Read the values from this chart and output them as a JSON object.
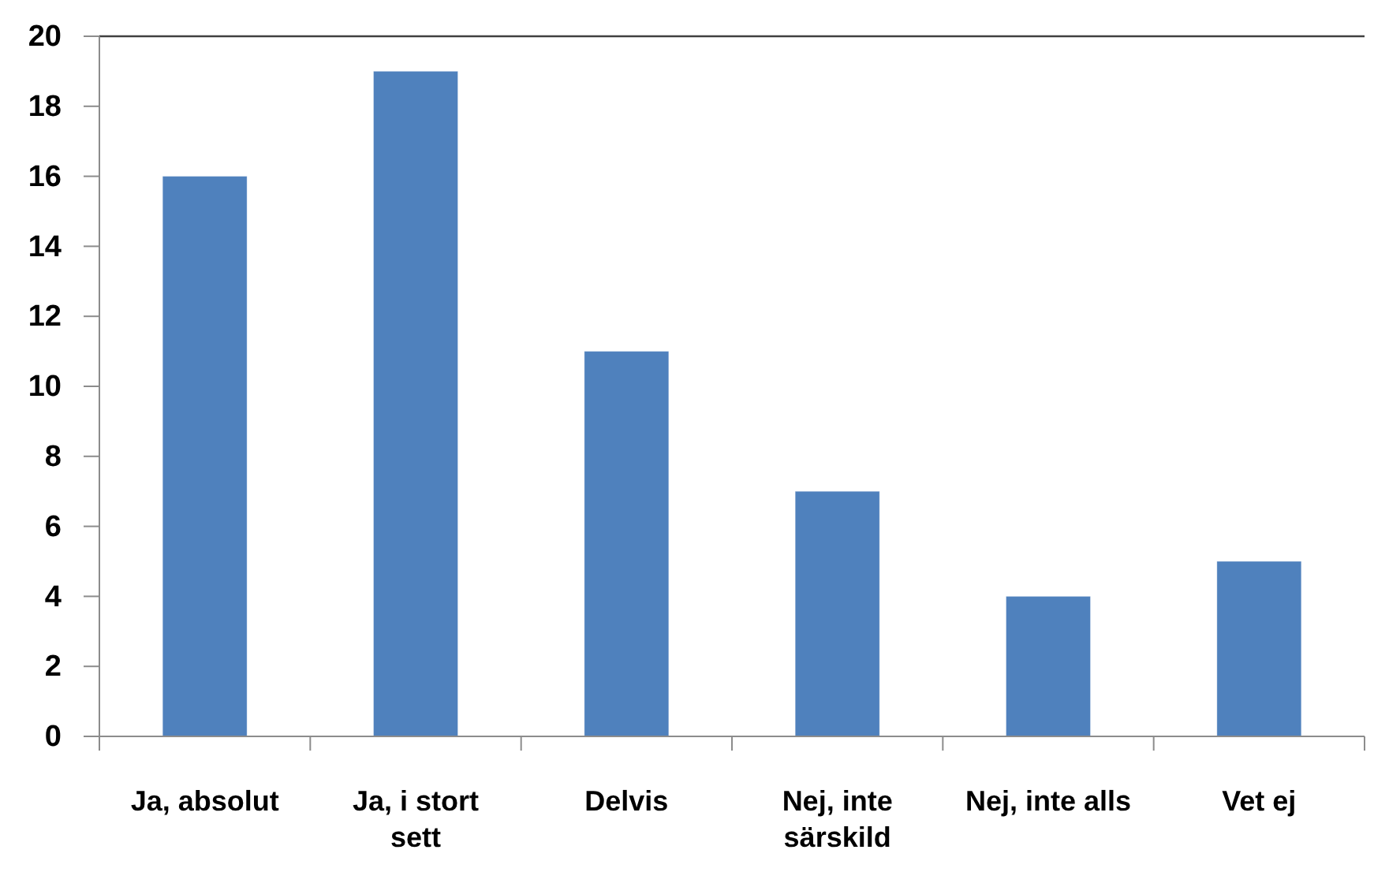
{
  "chart_data": {
    "type": "bar",
    "categories": [
      "Ja, absolut",
      "Ja, i stort sett",
      "Delvis",
      "Nej, inte särskild",
      "Nej, inte alls",
      "Vet ej"
    ],
    "values": [
      16,
      19,
      11,
      7,
      4,
      5
    ],
    "color": "#4f81bd",
    "ylim": [
      0,
      20
    ],
    "yticks": [
      0,
      2,
      4,
      6,
      8,
      10,
      12,
      14,
      16,
      18,
      20
    ],
    "grid": false
  }
}
